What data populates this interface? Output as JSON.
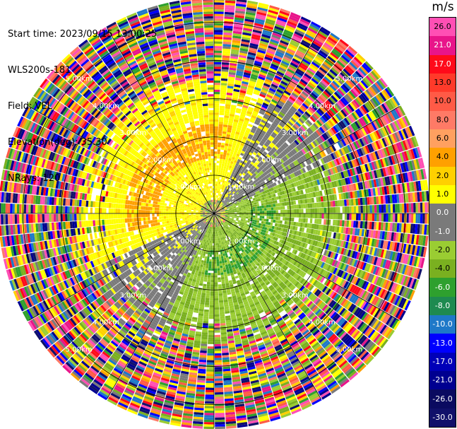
{
  "info": {
    "start_time": "Start time: 2023/09/15 13:00:25",
    "instrument": "WLS200s-181",
    "field": "Field: VEL",
    "elevation": "Elevation(deg): 35.30",
    "nrays": "NRays: 120"
  },
  "colorbar": {
    "unit": "m/s",
    "labels": [
      "26.0",
      "21.0",
      "17.0",
      "13.0",
      "10.0",
      "8.0",
      "6.0",
      "4.0",
      "2.0",
      "1.0",
      "0.0",
      "-1.0",
      "-2.0",
      "-4.0",
      "-6.0",
      "-8.0",
      "-10.0",
      "-13.0",
      "-17.0",
      "-21.0",
      "-26.0",
      "-30.0"
    ],
    "colors": [
      "#ff4fb4",
      "#e8158a",
      "#ff0a1a",
      "#ff3a2a",
      "#ff5a46",
      "#ff7a66",
      "#ffa060",
      "#ffa000",
      "#ffd000",
      "#ffff00",
      "#7a7a7a",
      "#7a7a7a",
      "#9acd32",
      "#7ab020",
      "#2ea02e",
      "#1e8a50",
      "#1e78c8",
      "#0000ff",
      "#0000b8",
      "#000090",
      "#0a0a60",
      "#10106a"
    ]
  },
  "chart_data": {
    "type": "ppi",
    "field": "VEL",
    "units": "m/s",
    "nrays": 120,
    "rings_km": [
      1.0,
      2.0,
      3.0,
      4.0,
      5.0
    ],
    "ring_labels": [
      "1.00km",
      "2.00km",
      "3.00km",
      "4.00km",
      "5.00km"
    ],
    "azimuth_spokes_deg": [
      0,
      30,
      60,
      90,
      120,
      150,
      180,
      210,
      240,
      270,
      300,
      330
    ],
    "max_range_km": 5.6,
    "velocity_pattern": "positive (yellow/orange) toward north-west half, negative (green) toward south-east half, noise beyond ~3.5km"
  }
}
